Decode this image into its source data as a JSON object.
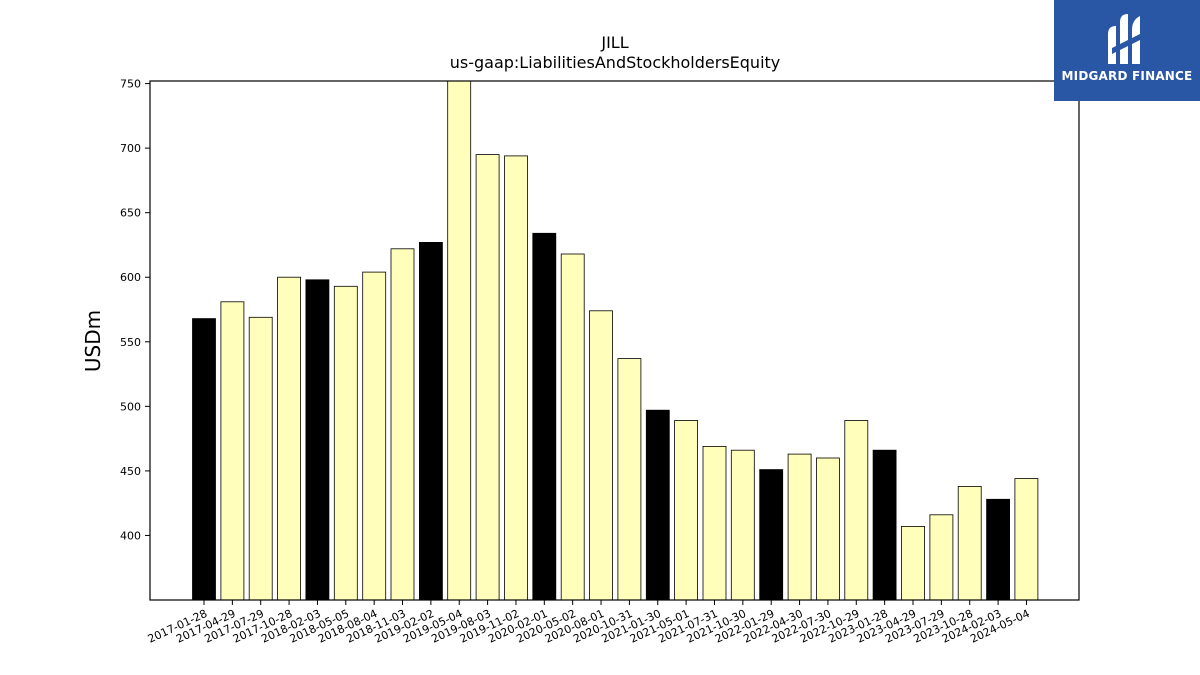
{
  "chart_data": {
    "type": "bar",
    "title": "JILL",
    "subtitle": "us-gaap:LiabilitiesAndStockholdersEquity",
    "xlabel": "",
    "ylabel": "USDm",
    "ylim": [
      350,
      752
    ],
    "yticks": [
      400,
      450,
      500,
      550,
      600,
      650,
      700,
      750
    ],
    "grid": false,
    "categories": [
      "2017-01-28",
      "2017-04-29",
      "2017-07-29",
      "2017-10-28",
      "2018-02-03",
      "2018-05-05",
      "2018-08-04",
      "2018-11-03",
      "2019-02-02",
      "2019-05-04",
      "2019-08-03",
      "2019-11-02",
      "2020-02-01",
      "2020-05-02",
      "2020-08-01",
      "2020-10-31",
      "2021-01-30",
      "2021-05-01",
      "2021-07-31",
      "2021-10-30",
      "2022-01-29",
      "2022-04-30",
      "2022-07-30",
      "2022-10-29",
      "2023-01-28",
      "2023-04-29",
      "2023-07-29",
      "2023-10-28",
      "2024-02-03",
      "2024-05-04"
    ],
    "values": [
      568,
      581,
      569,
      600,
      598,
      593,
      604,
      622,
      627,
      756,
      695,
      694,
      634,
      618,
      574,
      537,
      497,
      489,
      469,
      466,
      451,
      463,
      460,
      489,
      466,
      407,
      416,
      438,
      428,
      444
    ],
    "highlight": [
      true,
      false,
      false,
      false,
      true,
      false,
      false,
      false,
      true,
      false,
      false,
      false,
      true,
      false,
      false,
      false,
      true,
      false,
      false,
      false,
      true,
      false,
      false,
      false,
      true,
      false,
      false,
      false,
      true,
      false
    ],
    "colors": {
      "highlight": "#000000",
      "normal": "#ffffbb",
      "edge": "#000000"
    }
  },
  "logo": {
    "text": "MIDGARD FINANCE",
    "background": "#2a56a6"
  }
}
